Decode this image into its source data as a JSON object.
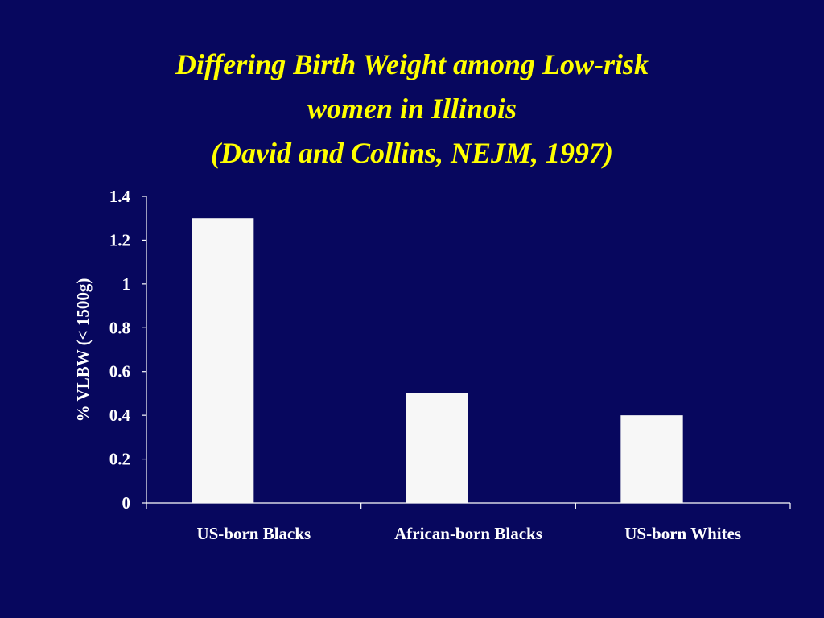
{
  "chart_data": {
    "type": "bar",
    "title": [
      "Differing Birth Weight among Low-risk",
      "women in Illinois",
      "(David and Collins, NEJM, 1997)"
    ],
    "y_label": "% VLBW (< 1500g)",
    "categories": [
      "US-born Blacks",
      "African-born Blacks",
      "US-born Whites"
    ],
    "values": [
      1.3,
      0.5,
      0.4
    ],
    "color": "#f7f7f7",
    "ylim": [
      0,
      1.4
    ],
    "yticks": [
      0,
      0.2,
      0.4,
      0.6,
      0.8,
      1,
      1.2,
      1.4
    ],
    "grid": false
  }
}
